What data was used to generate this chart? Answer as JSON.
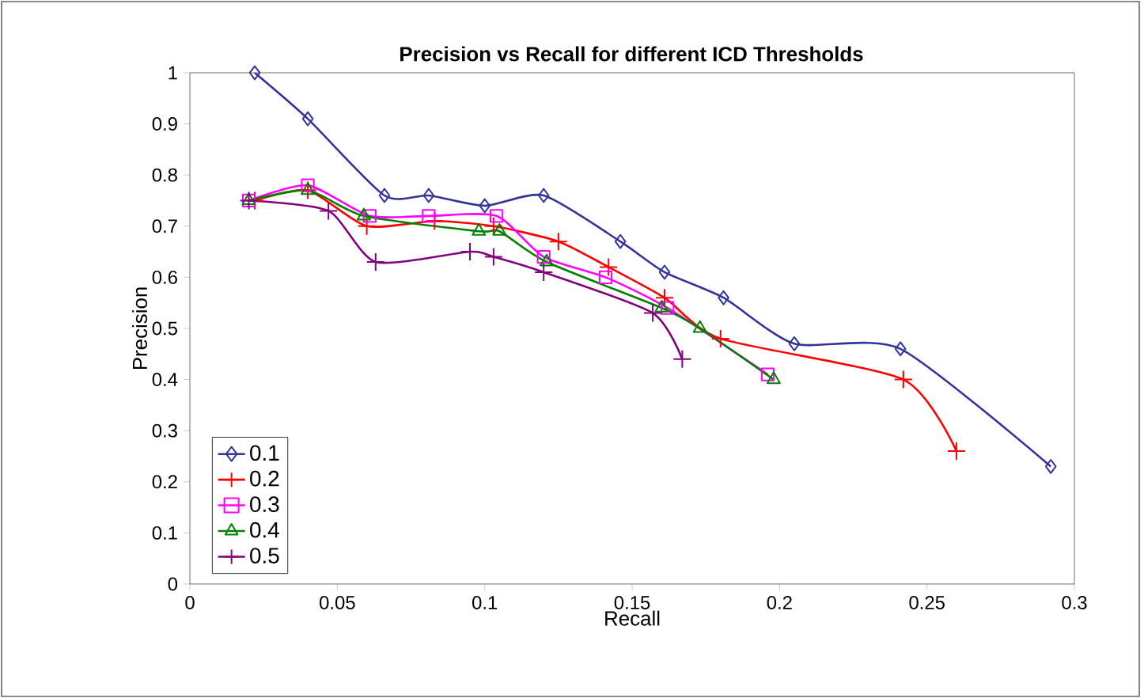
{
  "chart_data": {
    "type": "line",
    "title": "Precision vs Recall for different ICD Thresholds",
    "xlabel": "Recall",
    "ylabel": "Precision",
    "xlim": [
      0,
      0.3
    ],
    "xticks": [
      0,
      0.05,
      0.1,
      0.15,
      0.2,
      0.25,
      0.3
    ],
    "ylim": [
      0,
      1
    ],
    "yticks": [
      0,
      0.1,
      0.2,
      0.3,
      0.4,
      0.5,
      0.6,
      0.7,
      0.8,
      0.9,
      1
    ],
    "grid": false,
    "legend": "bottom left",
    "series": [
      {
        "name": "0.1",
        "color": "#333399",
        "marker": "diamond",
        "x": [
          0.022,
          0.04,
          0.066,
          0.081,
          0.1,
          0.12,
          0.146,
          0.161,
          0.181,
          0.205,
          0.241,
          0.292
        ],
        "values": [
          1.0,
          0.91,
          0.76,
          0.76,
          0.74,
          0.76,
          0.67,
          0.61,
          0.56,
          0.47,
          0.46,
          0.23
        ]
      },
      {
        "name": "0.2",
        "color": "#ff0000",
        "marker": "cross",
        "x": [
          0.022,
          0.04,
          0.06,
          0.083,
          0.103,
          0.125,
          0.142,
          0.161,
          0.18,
          0.242,
          0.26
        ],
        "values": [
          0.75,
          0.77,
          0.7,
          0.71,
          0.7,
          0.67,
          0.62,
          0.56,
          0.48,
          0.4,
          0.26
        ]
      },
      {
        "name": "0.3",
        "color": "#ff00ff",
        "marker": "square",
        "x": [
          0.02,
          0.04,
          0.061,
          0.081,
          0.104,
          0.12,
          0.141,
          0.162,
          0.196
        ],
        "values": [
          0.75,
          0.78,
          0.72,
          0.72,
          0.72,
          0.64,
          0.6,
          0.54,
          0.41
        ]
      },
      {
        "name": "0.4",
        "color": "#008000",
        "marker": "triangle",
        "x": [
          0.02,
          0.04,
          0.059,
          0.098,
          0.105,
          0.121,
          0.16,
          0.173,
          0.198
        ],
        "values": [
          0.75,
          0.77,
          0.72,
          0.69,
          0.69,
          0.63,
          0.54,
          0.5,
          0.4
        ]
      },
      {
        "name": "0.5",
        "color": "#800080",
        "marker": "cross",
        "x": [
          0.02,
          0.047,
          0.063,
          0.095,
          0.103,
          0.12,
          0.157,
          0.167
        ],
        "values": [
          0.75,
          0.73,
          0.63,
          0.65,
          0.64,
          0.61,
          0.53,
          0.44
        ]
      }
    ]
  }
}
